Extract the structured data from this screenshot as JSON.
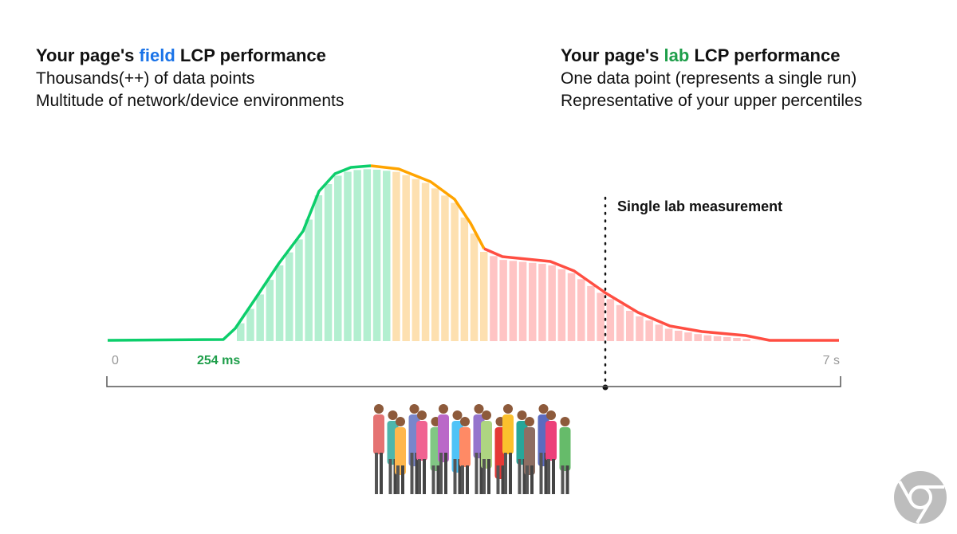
{
  "left": {
    "title_prefix": "Your page's ",
    "title_highlight": "field",
    "title_suffix": " LCP performance",
    "line1": "Thousands(++) of data points",
    "line2": "Multitude of network/device environments"
  },
  "right": {
    "title_prefix": "Your page's ",
    "title_highlight": "lab",
    "title_suffix": " LCP performance",
    "line1": "One data point (represents a single run)",
    "line2": "Representative of your upper percentiles"
  },
  "chart": {
    "x_start_label": "0",
    "x_marker_label": "254 ms",
    "x_end_label": "7 s",
    "lab_annotation": "Single lab measurement"
  },
  "colors": {
    "good": "#0cce6b",
    "needs_improvement": "#ffa400",
    "poor": "#ff4e42",
    "field_highlight": "#1a73e8",
    "lab_highlight": "#1e9e4a"
  },
  "icons": {
    "crowd": "crowd-illustration",
    "logo": "chrome-logo"
  }
}
